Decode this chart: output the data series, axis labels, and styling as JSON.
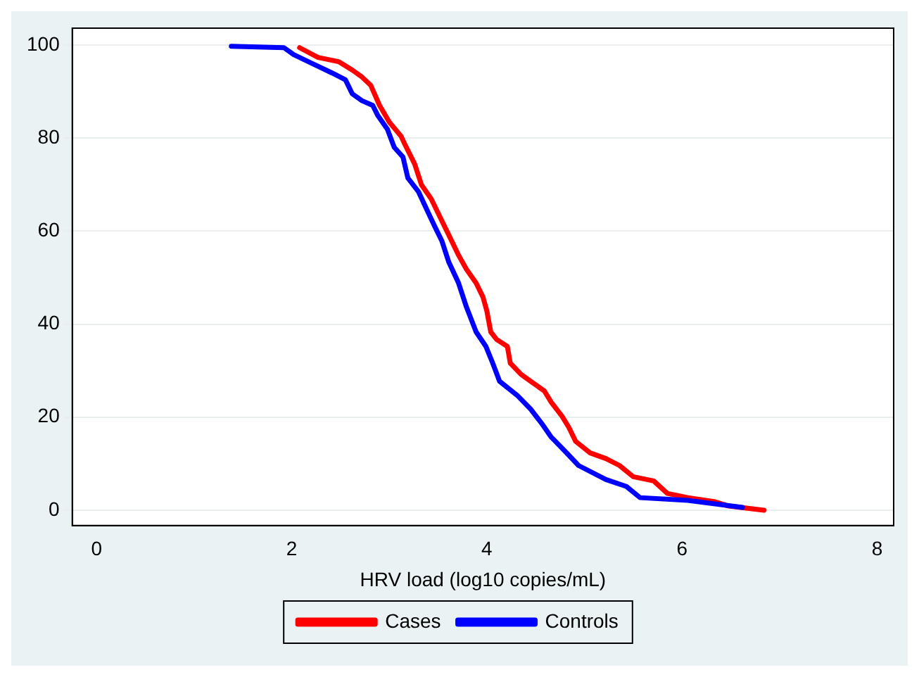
{
  "chart_data": {
    "type": "line",
    "xlabel": "HRV load (log10 copies/mL)",
    "xlim": [
      -0.25,
      8.17
    ],
    "ylim": [
      -3.3,
      103.6
    ],
    "xticks": [
      0,
      2,
      4,
      6,
      8
    ],
    "yticks": [
      0,
      20,
      40,
      60,
      80,
      100
    ],
    "grid": "y",
    "legend": "bottom",
    "marker": "none",
    "line_style": "solid",
    "series": [
      {
        "name": "Cases",
        "color": "#ff0000",
        "x": [
          2.08,
          2.27,
          2.48,
          2.62,
          2.72,
          2.81,
          2.9,
          3.0,
          3.12,
          3.16,
          3.26,
          3.33,
          3.43,
          3.52,
          3.62,
          3.71,
          3.79,
          3.89,
          3.96,
          4.0,
          4.04,
          4.1,
          4.21,
          4.24,
          4.35,
          4.45,
          4.59,
          4.66,
          4.77,
          4.84,
          4.91,
          5.06,
          5.22,
          5.36,
          5.5,
          5.71,
          5.85,
          6.06,
          6.34,
          6.48,
          6.84
        ],
        "values": [
          99.4,
          97.3,
          96.4,
          94.6,
          93.1,
          91.3,
          87,
          83.4,
          80.4,
          78.6,
          74.4,
          69.9,
          66.9,
          63,
          58.7,
          54.8,
          51.8,
          48.8,
          45.8,
          42.8,
          38.3,
          36.7,
          35.2,
          31.6,
          29.2,
          27.7,
          25.6,
          23.2,
          20.2,
          17.8,
          14.8,
          12.3,
          11.1,
          9.6,
          7.2,
          6.3,
          3.6,
          2.7,
          1.8,
          0.9,
          0
        ]
      },
      {
        "name": "Controls",
        "color": "#0000ff",
        "x": [
          1.38,
          1.92,
          2.02,
          2.2,
          2.41,
          2.55,
          2.62,
          2.72,
          2.83,
          2.88,
          2.98,
          3.05,
          3.14,
          3.19,
          3.3,
          3.4,
          3.47,
          3.54,
          3.61,
          3.71,
          3.79,
          3.89,
          3.99,
          4.06,
          4.13,
          4.31,
          4.45,
          4.56,
          4.66,
          4.8,
          4.94,
          5.22,
          5.43,
          5.57,
          6.06,
          6.62
        ],
        "values": [
          99.7,
          99.4,
          97.9,
          96.1,
          94,
          92.5,
          89.5,
          88,
          87,
          84.9,
          81.9,
          78,
          75.9,
          71.4,
          68.4,
          63.9,
          60.8,
          57.8,
          53.3,
          48.8,
          43.7,
          38.3,
          35.2,
          31.6,
          27.7,
          24.7,
          21.7,
          18.7,
          15.7,
          12.7,
          9.6,
          6.6,
          5.1,
          2.7,
          2.1,
          0.6
        ]
      }
    ]
  }
}
